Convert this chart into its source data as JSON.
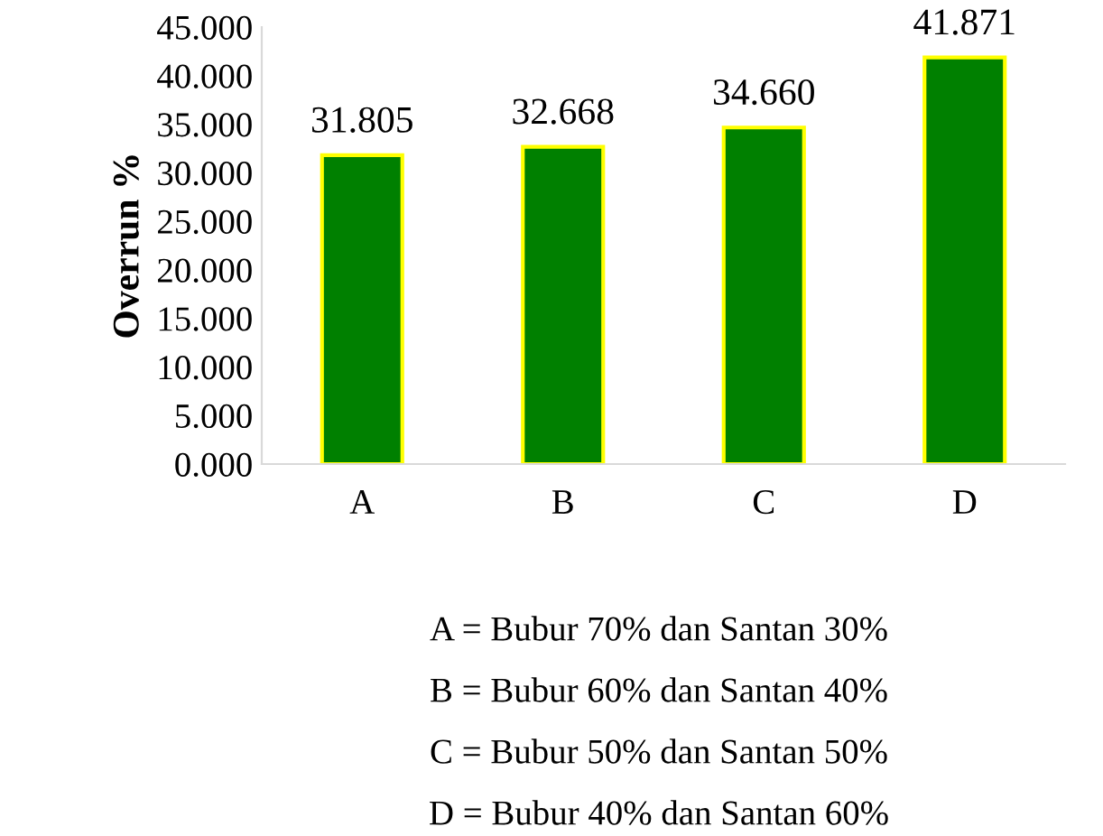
{
  "chart_data": {
    "type": "bar",
    "ylabel": "Overrun %",
    "categories": [
      "A",
      "B",
      "C",
      "D"
    ],
    "values": [
      31.805,
      32.668,
      34.66,
      41.871
    ],
    "value_labels": [
      "31.805",
      "32.668",
      "34.660",
      "41.871"
    ],
    "color": "#008000",
    "ylim": [
      0,
      45
    ],
    "yticks": [
      {
        "value": 0,
        "label": "0.000"
      },
      {
        "value": 5,
        "label": "5.000"
      },
      {
        "value": 10,
        "label": "10.000"
      },
      {
        "value": 15,
        "label": "15.000"
      },
      {
        "value": 20,
        "label": "20.000"
      },
      {
        "value": 25,
        "label": "25.000"
      },
      {
        "value": 30,
        "label": "30.000"
      },
      {
        "value": 35,
        "label": "35.000"
      },
      {
        "value": 40,
        "label": "40.000"
      },
      {
        "value": 45,
        "label": "45.000"
      }
    ],
    "grid": false,
    "legend": false,
    "annotations": [
      "A = Bubur 70% dan Santan 30%",
      "B = Bubur 60% dan Santan 40%",
      "C = Bubur 50% dan Santan 50%",
      "D = Bubur 40% dan Santan 60%"
    ]
  }
}
